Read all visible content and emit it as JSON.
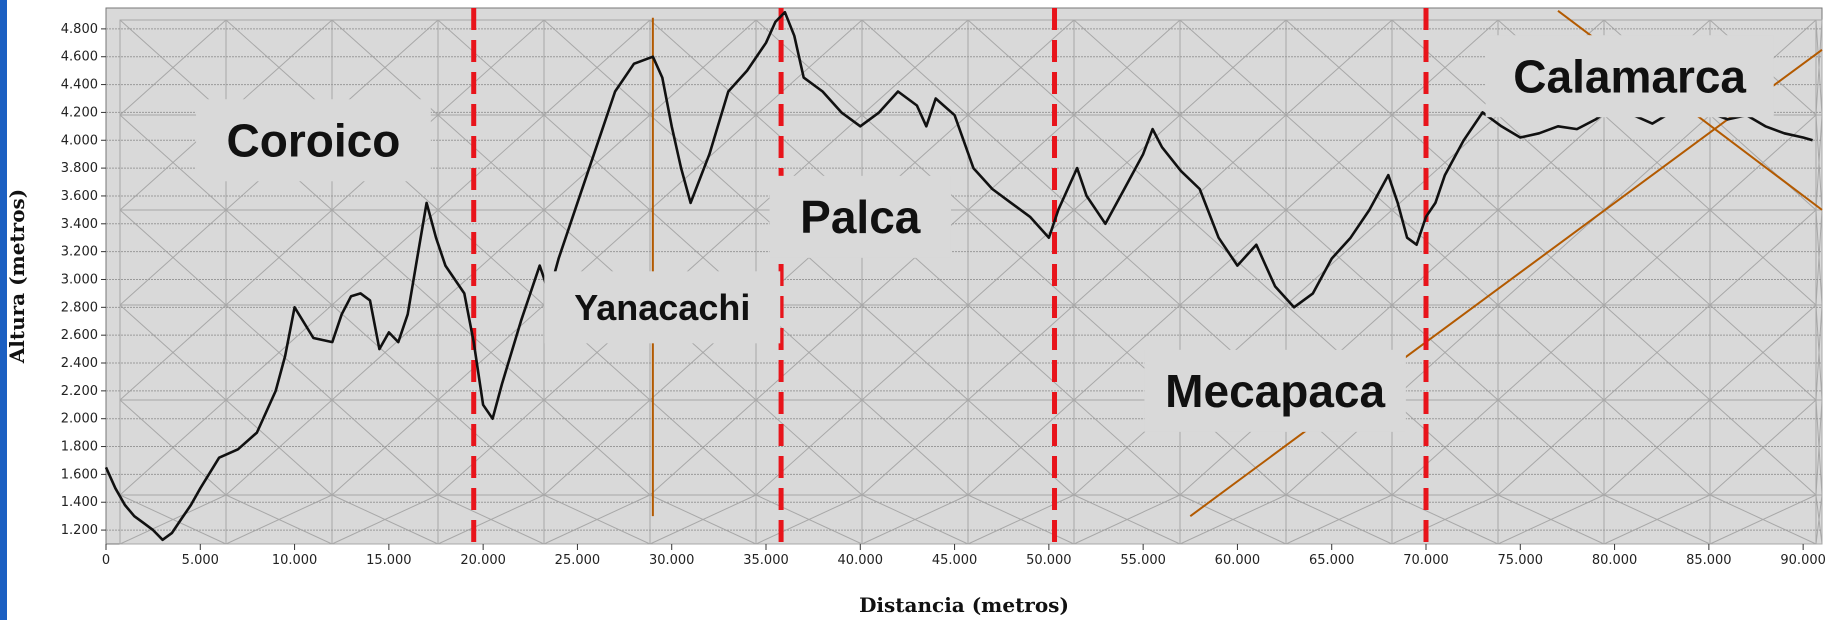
{
  "chart_data": {
    "type": "line",
    "title": "",
    "xlabel": "Distancia (metros)",
    "ylabel": "Altura (metros)",
    "xlim": [
      0,
      91000
    ],
    "ylim": [
      1100,
      4950
    ],
    "x_ticks": [
      0,
      5000,
      10000,
      15000,
      20000,
      25000,
      30000,
      35000,
      40000,
      45000,
      50000,
      55000,
      60000,
      65000,
      70000,
      75000,
      80000,
      85000,
      90000
    ],
    "x_tick_labels": [
      "0",
      "5.000",
      "10.000",
      "15.000",
      "20.000",
      "25.000",
      "30.000",
      "35.000",
      "40.000",
      "45.000",
      "50.000",
      "55.000",
      "60.000",
      "65.000",
      "70.000",
      "75.000",
      "80.000",
      "85.000",
      "90.000"
    ],
    "y_ticks": [
      1200,
      1400,
      1600,
      1800,
      2000,
      2200,
      2400,
      2600,
      2800,
      3000,
      3200,
      3400,
      3600,
      3800,
      4000,
      4200,
      4400,
      4600,
      4800
    ],
    "y_tick_labels": [
      "1.200",
      "1.400",
      "1.600",
      "1.800",
      "2.000",
      "2.200",
      "2.400",
      "2.600",
      "2.800",
      "3.000",
      "3.200",
      "3.400",
      "3.600",
      "3.800",
      "4.000",
      "4.200",
      "4.400",
      "4.600",
      "4.800"
    ],
    "grid": true,
    "series": [
      {
        "x": [
          0,
          500,
          1000,
          1500,
          2000,
          2500,
          3000,
          3500,
          4000,
          4500,
          5000,
          6000,
          7000,
          8000,
          9000,
          9500,
          10000,
          11000,
          12000,
          12500,
          13000,
          13500,
          14000,
          14500,
          15000,
          15500,
          16000,
          16500,
          17000,
          17500,
          18000,
          19000,
          19500,
          20000,
          20500,
          21000,
          22000,
          23000,
          23500,
          24000,
          25000,
          26000,
          27000,
          28000,
          29000,
          29500,
          30000,
          30500,
          31000,
          32000,
          33000,
          34000,
          35000,
          35500,
          36000,
          36500,
          37000,
          38000,
          39000,
          40000,
          41000,
          42000,
          43000,
          43500,
          44000,
          45000,
          46000,
          47000,
          48000,
          49000,
          50000,
          50500,
          51000,
          51500,
          52000,
          53000,
          54000,
          55000,
          55500,
          56000,
          57000,
          58000,
          59000,
          60000,
          61000,
          61500,
          62000,
          63000,
          64000,
          65000,
          66000,
          67000,
          68000,
          68500,
          69000,
          69500,
          70000,
          70500,
          71000,
          72000,
          73000,
          74000,
          75000,
          76000,
          77000,
          78000,
          79000,
          80000,
          81000,
          82000,
          83000,
          84000,
          85000,
          86000,
          87000,
          88000,
          89000,
          90000,
          90500
        ],
        "values": [
          1650,
          1500,
          1380,
          1300,
          1250,
          1200,
          1130,
          1180,
          1280,
          1380,
          1500,
          1720,
          1780,
          1900,
          2200,
          2450,
          2800,
          2580,
          2550,
          2750,
          2880,
          2900,
          2850,
          2500,
          2620,
          2550,
          2750,
          3150,
          3550,
          3300,
          3100,
          2900,
          2550,
          2100,
          2000,
          2250,
          2700,
          3100,
          2900,
          3150,
          3550,
          3950,
          4350,
          4550,
          4600,
          4450,
          4100,
          3800,
          3550,
          3900,
          4350,
          4500,
          4700,
          4850,
          4920,
          4750,
          4450,
          4350,
          4200,
          4100,
          4200,
          4350,
          4250,
          4100,
          4300,
          4180,
          3800,
          3650,
          3550,
          3450,
          3300,
          3500,
          3650,
          3800,
          3600,
          3400,
          3650,
          3900,
          4080,
          3950,
          3780,
          3650,
          3300,
          3100,
          3250,
          3100,
          2950,
          2800,
          2900,
          3150,
          3300,
          3500,
          3750,
          3550,
          3300,
          3250,
          3450,
          3550,
          3750,
          4000,
          4200,
          4100,
          4020,
          4050,
          4100,
          4080,
          4150,
          4250,
          4180,
          4120,
          4200,
          4280,
          4200,
          4150,
          4180,
          4100,
          4050,
          4020,
          4000
        ]
      }
    ],
    "vertical_markers": [
      19500,
      35800,
      50300,
      70000
    ],
    "annotations": [
      {
        "text": "Coroico",
        "x": 11000,
        "y": 4000
      },
      {
        "text": "Yanacachi",
        "x": 29500,
        "y": 2800
      },
      {
        "text": "Palca",
        "x": 40000,
        "y": 3450
      },
      {
        "text": "Mecapaca",
        "x": 62000,
        "y": 2200
      },
      {
        "text": "Calamarca",
        "x": 80800,
        "y": 4460
      }
    ]
  },
  "colors": {
    "background": "#ffffff",
    "plot_background": "#d9d9d9",
    "grid": "#a8a8a8",
    "grid_minor": "#b8b8b8",
    "line": "#111111",
    "marker": "#e8141b",
    "diagonal": "#b35a00",
    "left_band": "#1b5fc2",
    "label_box": "#d9d9d9"
  }
}
